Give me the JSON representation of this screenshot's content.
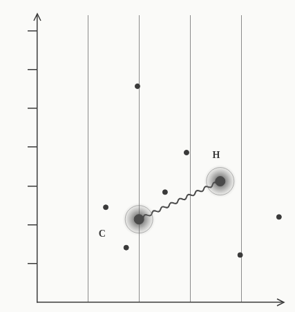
{
  "chart_data": {
    "type": "scatter",
    "xlim": [
      0,
      4.8
    ],
    "ylim": [
      0,
      7.4
    ],
    "xticks": [
      1,
      2,
      3,
      4
    ],
    "yticks": [
      1,
      2,
      3,
      4,
      5,
      6,
      7
    ],
    "grid": "x",
    "tick_labels": false,
    "series": [
      {
        "color": "#3a3a3a",
        "marker": "circle",
        "x": [
          1.96,
          2.92,
          2.5,
          1.34,
          1.74,
          3.97,
          4.73
        ],
        "values": [
          5.57,
          3.86,
          2.84,
          2.45,
          1.41,
          1.22,
          2.2
        ]
      },
      {
        "color": "#4a4a4a",
        "marker": "glow",
        "line_style": "wavy",
        "x": [
          1.99,
          3.58
        ],
        "values": [
          2.14,
          3.12
        ]
      }
    ],
    "annotations": [
      {
        "text": "C",
        "x": 1.27,
        "y": 1.75
      },
      {
        "text": "H",
        "x": 3.5,
        "y": 3.78
      }
    ]
  }
}
